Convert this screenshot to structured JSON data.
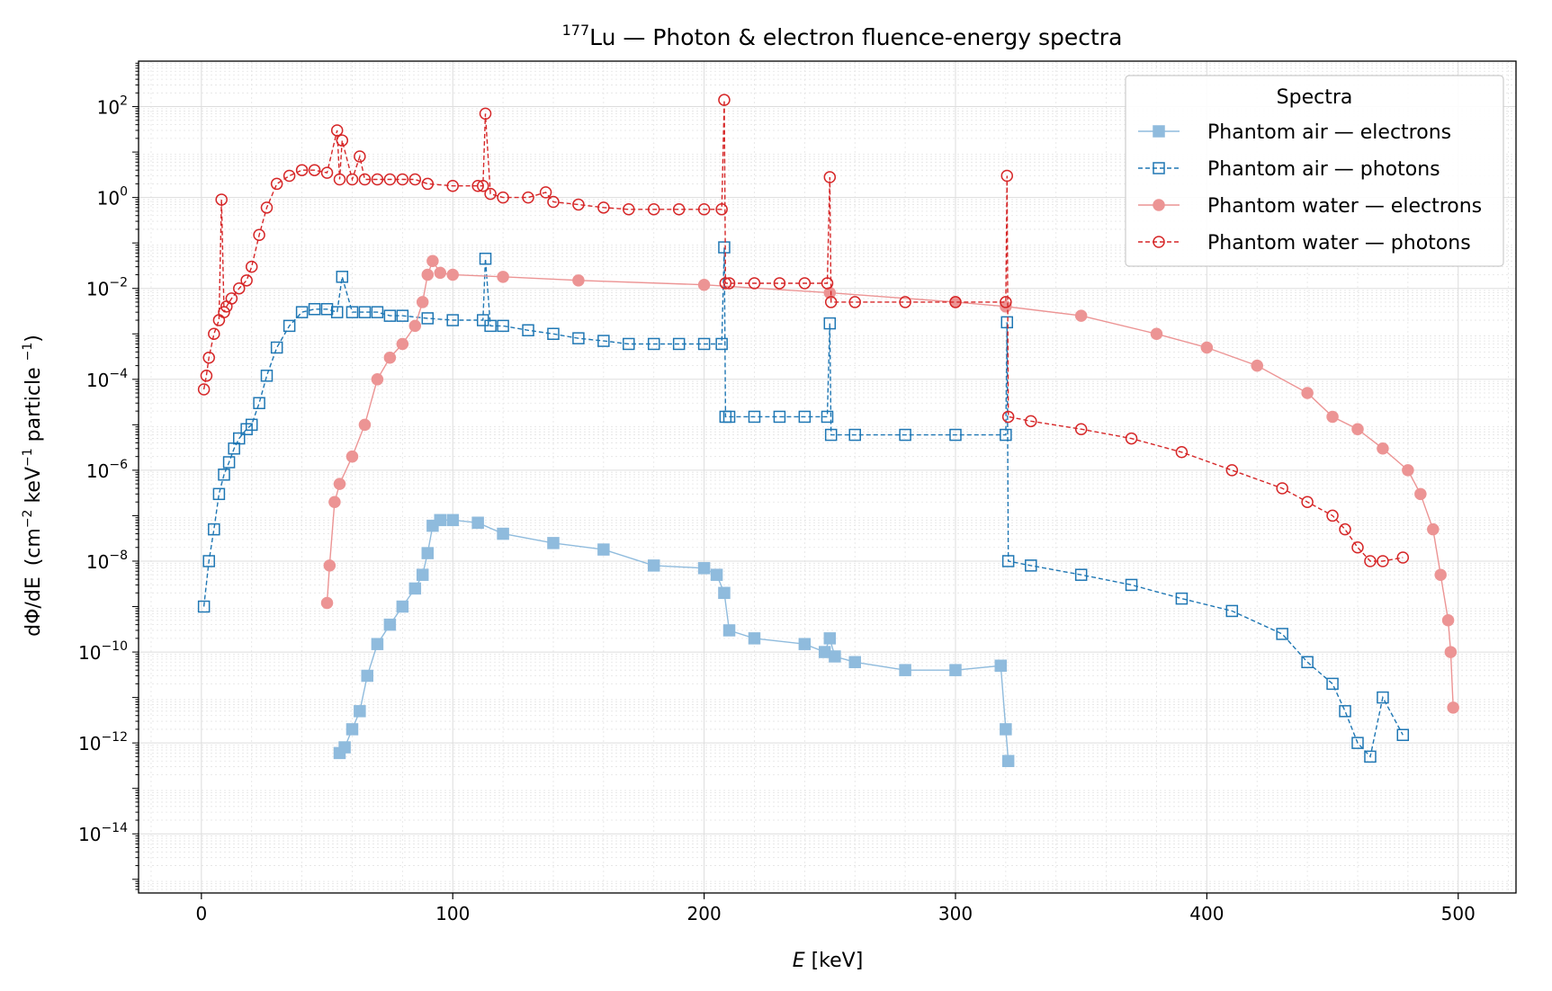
{
  "chart_data": {
    "type": "line",
    "title_sup": "177",
    "title_main": "Lu — Photon & electron fluence-energy spectra",
    "xlabel": "E [keV]",
    "ylabel": "dΦ/dE (cm⁻² keV⁻¹ particle ⁻¹)",
    "xlim": [
      -25,
      523
    ],
    "ylim": [
      5e-16,
      1000
    ],
    "yscale": "log",
    "grid": true,
    "minor_grid": true,
    "legend_title": "Spectra",
    "legend_position": "top-right",
    "x_ticks": [
      0,
      100,
      200,
      300,
      400,
      500
    ],
    "y_ticks": [
      {
        "base": "10",
        "exp": "2",
        "value": 100
      },
      {
        "base": "10",
        "exp": "0",
        "value": 1
      },
      {
        "base": "10",
        "exp": "−2",
        "value": 0.01
      },
      {
        "base": "10",
        "exp": "−4",
        "value": 0.0001
      },
      {
        "base": "10",
        "exp": "−6",
        "value": 1e-06
      },
      {
        "base": "10",
        "exp": "−8",
        "value": 1e-08
      },
      {
        "base": "10",
        "exp": "−10",
        "value": 1e-10
      },
      {
        "base": "10",
        "exp": "−12",
        "value": 1e-12
      },
      {
        "base": "10",
        "exp": "−14",
        "value": 1e-14
      }
    ],
    "series": [
      {
        "name": "Phantom air — electrons",
        "color": "#8fbbdd",
        "marker": "filled-square",
        "linestyle": "solid",
        "x": [
          55,
          57,
          60,
          63,
          66,
          70,
          75,
          80,
          85,
          88,
          90,
          92,
          95,
          100,
          110,
          120,
          140,
          160,
          180,
          200,
          205,
          208,
          210,
          220,
          240,
          248,
          250,
          252,
          260,
          280,
          300,
          318,
          320,
          321
        ],
        "y": [
          6e-13,
          8e-13,
          2e-12,
          5e-12,
          3e-11,
          1.5e-10,
          4e-10,
          1e-09,
          2.5e-09,
          5e-09,
          1.5e-08,
          6e-08,
          8e-08,
          8e-08,
          7e-08,
          4e-08,
          2.5e-08,
          1.8e-08,
          8e-09,
          7e-09,
          5e-09,
          2e-09,
          3e-10,
          2e-10,
          1.5e-10,
          1e-10,
          2e-10,
          8e-11,
          6e-11,
          4e-11,
          4e-11,
          5e-11,
          2e-12,
          4e-13
        ]
      },
      {
        "name": "Phantom air — photons",
        "color": "#1f77b4",
        "marker": "open-square",
        "linestyle": "dashed",
        "x": [
          1,
          3,
          5,
          7,
          9,
          11,
          13,
          15,
          18,
          20,
          23,
          26,
          30,
          35,
          40,
          45,
          50,
          54,
          56,
          60,
          65,
          70,
          75,
          80,
          90,
          100,
          112,
          113,
          115,
          120,
          130,
          140,
          150,
          160,
          170,
          180,
          190,
          200,
          207,
          208,
          208.5,
          210,
          220,
          230,
          240,
          249,
          250,
          250.5,
          260,
          280,
          300,
          320,
          320.5,
          321,
          330,
          350,
          370,
          390,
          410,
          430,
          440,
          450,
          455,
          460,
          465,
          470,
          478
        ],
        "y": [
          1e-09,
          1e-08,
          5e-08,
          3e-07,
          8e-07,
          1.5e-06,
          3e-06,
          5e-06,
          8e-06,
          1e-05,
          3e-05,
          0.00012,
          0.0005,
          0.0015,
          0.003,
          0.0035,
          0.0035,
          0.003,
          0.018,
          0.003,
          0.003,
          0.003,
          0.0025,
          0.0025,
          0.0022,
          0.002,
          0.002,
          0.045,
          0.0015,
          0.0015,
          0.0012,
          0.001,
          0.0008,
          0.0007,
          0.0006,
          0.0006,
          0.0006,
          0.0006,
          0.0006,
          0.08,
          1.5e-05,
          1.5e-05,
          1.5e-05,
          1.5e-05,
          1.5e-05,
          1.5e-05,
          0.0017,
          6e-06,
          6e-06,
          6e-06,
          6e-06,
          6e-06,
          0.0018,
          1e-08,
          8e-09,
          5e-09,
          3e-09,
          1.5e-09,
          8e-10,
          2.5e-10,
          6e-11,
          2e-11,
          5e-12,
          1e-12,
          5e-13,
          1e-11,
          1.5e-12
        ]
      },
      {
        "name": "Phantom water — electrons",
        "color": "#ec9494",
        "marker": "filled-circle",
        "linestyle": "solid",
        "x": [
          50,
          51,
          53,
          55,
          60,
          65,
          70,
          75,
          80,
          85,
          88,
          90,
          92,
          95,
          100,
          120,
          150,
          200,
          250,
          300,
          320,
          350,
          380,
          400,
          420,
          440,
          450,
          460,
          470,
          480,
          485,
          490,
          493,
          496,
          497,
          498
        ],
        "y": [
          1.2e-09,
          8e-09,
          2e-07,
          5e-07,
          2e-06,
          1e-05,
          0.0001,
          0.0003,
          0.0006,
          0.0015,
          0.005,
          0.02,
          0.04,
          0.022,
          0.02,
          0.018,
          0.015,
          0.012,
          0.008,
          0.005,
          0.004,
          0.0025,
          0.001,
          0.0005,
          0.0002,
          5e-05,
          1.5e-05,
          8e-06,
          3e-06,
          1e-06,
          3e-07,
          5e-08,
          5e-09,
          5e-10,
          1e-10,
          6e-12
        ]
      },
      {
        "name": "Phantom water — photons",
        "color": "#d62728",
        "marker": "open-circle",
        "linestyle": "dashed",
        "x": [
          1,
          2,
          3,
          5,
          7,
          8,
          9,
          10,
          12,
          15,
          18,
          20,
          23,
          26,
          30,
          35,
          40,
          45,
          50,
          54,
          55,
          56,
          60,
          63,
          65,
          70,
          75,
          80,
          85,
          90,
          100,
          110,
          112,
          113,
          115,
          120,
          130,
          137,
          140,
          150,
          160,
          170,
          180,
          190,
          200,
          207,
          208,
          208.5,
          210,
          220,
          230,
          240,
          249,
          250,
          250.5,
          260,
          280,
          300,
          320,
          320.5,
          321,
          330,
          350,
          370,
          390,
          410,
          430,
          440,
          450,
          455,
          460,
          465,
          470,
          478
        ],
        "y": [
          6e-05,
          0.00012,
          0.0003,
          0.001,
          0.002,
          0.9,
          0.003,
          0.004,
          0.006,
          0.01,
          0.015,
          0.03,
          0.15,
          0.6,
          2,
          3,
          4,
          4,
          3.5,
          30,
          2.5,
          18,
          2.5,
          8,
          2.5,
          2.5,
          2.5,
          2.5,
          2.5,
          2,
          1.8,
          1.8,
          1.8,
          70,
          1.2,
          1,
          1,
          1.3,
          0.8,
          0.7,
          0.6,
          0.55,
          0.55,
          0.55,
          0.55,
          0.55,
          140,
          0.013,
          0.013,
          0.013,
          0.013,
          0.013,
          0.013,
          2.8,
          0.005,
          0.005,
          0.005,
          0.005,
          0.005,
          3,
          1.5e-05,
          1.2e-05,
          8e-06,
          5e-06,
          2.5e-06,
          1e-06,
          4e-07,
          2e-07,
          1e-07,
          5e-08,
          2e-08,
          1e-08,
          1e-08,
          1.2e-08
        ]
      }
    ]
  }
}
